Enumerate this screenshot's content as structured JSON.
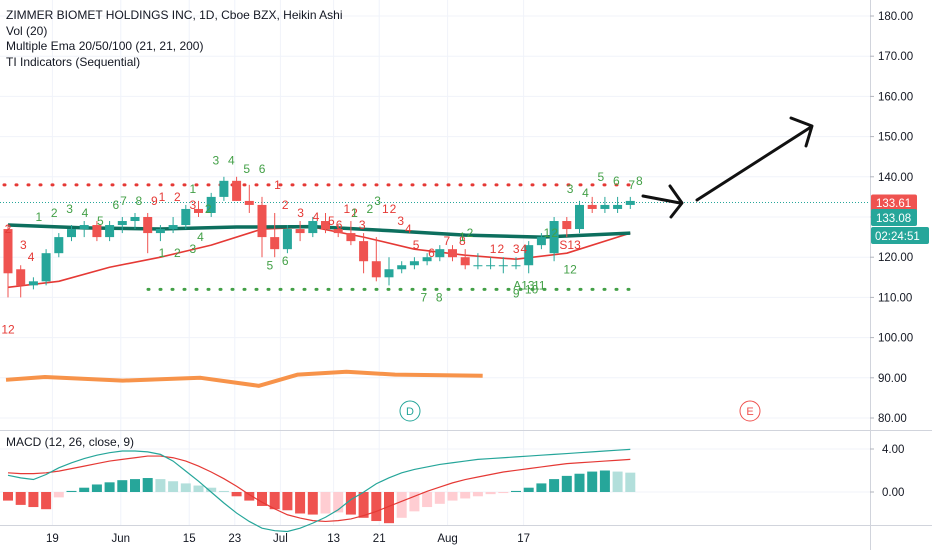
{
  "legend": {
    "title": "ZIMMER BIOMET HOLDINGS INC, 1D, Cboe BZX, Heikin Ashi",
    "lines": [
      "Vol (20)",
      "Multiple Ema 20/50/100 (21, 21, 200)",
      "TI Indicators (Sequential)"
    ],
    "macd_title": "MACD (12, 26, close, 9)"
  },
  "price_tags": {
    "last": "133.61",
    "ema": "133.08",
    "countdown": "02:24:51"
  },
  "event_markers": [
    {
      "label": "D",
      "date_index": 28,
      "color": "#26a69a"
    },
    {
      "label": "E",
      "date_index": 53,
      "color": "#ef5350"
    }
  ],
  "colors": {
    "up": "#26a69a",
    "down": "#ef5350",
    "up_light": "#b2dfdb",
    "down_light": "#ffcdd2",
    "ema_dark": "#0d6f5e",
    "ema_red": "#e53935",
    "orange": "#f7934a",
    "grid": "#f0f3fa",
    "axis_text": "#131722",
    "seq_green": "#43a047",
    "seq_red": "#e53935",
    "last_tag": "#ef5350",
    "ema_tag": "#26a69a"
  },
  "chart_data": [
    {
      "type": "candlestick",
      "title": "ZIMMER BIOMET HOLDINGS INC, 1D, Cboe BZX, Heikin Ashi",
      "y_axis": {
        "min": 77,
        "max": 184,
        "ticks": [
          "180.00",
          "170.00",
          "160.00",
          "150.00",
          "140.00",
          "130.00",
          "120.00",
          "110.00",
          "100.00",
          "90.00",
          "80.00"
        ]
      },
      "x_axis": {
        "ticks": [
          {
            "label": "19",
            "index": 4
          },
          {
            "label": "Jun",
            "index": 13
          },
          {
            "label": "15",
            "index": 22
          },
          {
            "label": "23",
            "index": 28
          },
          {
            "label": "Jul",
            "index": 34
          },
          {
            "label": "13",
            "index": 41
          },
          {
            "label": "21",
            "index": 47
          },
          {
            "label": "Aug",
            "index": 56
          },
          {
            "label": "17",
            "index": 66
          }
        ],
        "index_step_px": 7.6
      },
      "candles": [
        {
          "o": 127,
          "h": 128,
          "l": 110,
          "c": 116
        },
        {
          "o": 117,
          "h": 118,
          "l": 110,
          "c": 113
        },
        {
          "o": 113,
          "h": 115,
          "l": 112,
          "c": 114
        },
        {
          "o": 114,
          "h": 122,
          "l": 113,
          "c": 121
        },
        {
          "o": 121,
          "h": 126,
          "l": 120,
          "c": 125
        },
        {
          "o": 125,
          "h": 128,
          "l": 124,
          "c": 127
        },
        {
          "o": 127,
          "h": 129,
          "l": 125,
          "c": 128
        },
        {
          "o": 128,
          "h": 129,
          "l": 124,
          "c": 125
        },
        {
          "o": 125,
          "h": 129,
          "l": 124,
          "c": 128
        },
        {
          "o": 128,
          "h": 130,
          "l": 126,
          "c": 129
        },
        {
          "o": 129,
          "h": 131,
          "l": 127,
          "c": 130
        },
        {
          "o": 130,
          "h": 131,
          "l": 121,
          "c": 126
        },
        {
          "o": 126,
          "h": 128,
          "l": 124,
          "c": 127
        },
        {
          "o": 127,
          "h": 130,
          "l": 126,
          "c": 128
        },
        {
          "o": 128,
          "h": 133,
          "l": 127,
          "c": 132
        },
        {
          "o": 132,
          "h": 134,
          "l": 130,
          "c": 131
        },
        {
          "o": 131,
          "h": 136,
          "l": 130,
          "c": 135
        },
        {
          "o": 135,
          "h": 140,
          "l": 134,
          "c": 139
        },
        {
          "o": 139,
          "h": 140,
          "l": 134,
          "c": 134
        },
        {
          "o": 134,
          "h": 138,
          "l": 131,
          "c": 133
        },
        {
          "o": 133,
          "h": 135,
          "l": 120,
          "c": 125
        },
        {
          "o": 125,
          "h": 131,
          "l": 120,
          "c": 122
        },
        {
          "o": 122,
          "h": 128,
          "l": 121,
          "c": 127
        },
        {
          "o": 127,
          "h": 129,
          "l": 124,
          "c": 126
        },
        {
          "o": 126,
          "h": 130,
          "l": 125,
          "c": 129
        },
        {
          "o": 129,
          "h": 131,
          "l": 126,
          "c": 127
        },
        {
          "o": 127,
          "h": 128,
          "l": 125,
          "c": 126
        },
        {
          "o": 126,
          "h": 129,
          "l": 123,
          "c": 124
        },
        {
          "o": 124,
          "h": 126,
          "l": 116,
          "c": 119
        },
        {
          "o": 119,
          "h": 125,
          "l": 114,
          "c": 115
        },
        {
          "o": 115,
          "h": 120,
          "l": 113,
          "c": 117
        },
        {
          "o": 117,
          "h": 119,
          "l": 116,
          "c": 118
        },
        {
          "o": 118,
          "h": 120,
          "l": 117,
          "c": 119
        },
        {
          "o": 119,
          "h": 121,
          "l": 118,
          "c": 120
        },
        {
          "o": 120,
          "h": 123,
          "l": 119,
          "c": 122
        },
        {
          "o": 122,
          "h": 123,
          "l": 119,
          "c": 120
        },
        {
          "o": 120,
          "h": 122,
          "l": 117,
          "c": 118
        },
        {
          "o": 118,
          "h": 121,
          "l": 117,
          "c": 118
        },
        {
          "o": 118,
          "h": 120,
          "l": 117,
          "c": 118
        },
        {
          "o": 118,
          "h": 120,
          "l": 116,
          "c": 118
        },
        {
          "o": 118,
          "h": 120,
          "l": 117,
          "c": 118
        },
        {
          "o": 118,
          "h": 124,
          "l": 116,
          "c": 123
        },
        {
          "o": 123,
          "h": 126,
          "l": 122,
          "c": 125
        },
        {
          "o": 121,
          "h": 130,
          "l": 119,
          "c": 129
        },
        {
          "o": 129,
          "h": 130,
          "l": 125,
          "c": 127
        },
        {
          "o": 127,
          "h": 134,
          "l": 126,
          "c": 133
        },
        {
          "o": 133,
          "h": 135,
          "l": 131,
          "c": 132
        },
        {
          "o": 132,
          "h": 135,
          "l": 131,
          "c": 133
        },
        {
          "o": 132,
          "h": 135,
          "l": 131,
          "c": 133
        },
        {
          "o": 133,
          "h": 135,
          "l": 132,
          "c": 134
        }
      ],
      "ema_dark": [
        {
          "i": 0,
          "v": 128.0
        },
        {
          "i": 6,
          "v": 127.3
        },
        {
          "i": 12,
          "v": 127.0
        },
        {
          "i": 18,
          "v": 127.5
        },
        {
          "i": 24,
          "v": 127.6
        },
        {
          "i": 30,
          "v": 126.6
        },
        {
          "i": 36,
          "v": 125.5
        },
        {
          "i": 42,
          "v": 125.0
        },
        {
          "i": 49,
          "v": 126.0
        }
      ],
      "ema_red": [
        {
          "i": 0,
          "v": 112.5
        },
        {
          "i": 4,
          "v": 114.0
        },
        {
          "i": 8,
          "v": 117.5
        },
        {
          "i": 12,
          "v": 120.0
        },
        {
          "i": 16,
          "v": 123.0
        },
        {
          "i": 20,
          "v": 127.0
        },
        {
          "i": 24,
          "v": 127.5
        },
        {
          "i": 28,
          "v": 125.0
        },
        {
          "i": 32,
          "v": 122.0
        },
        {
          "i": 36,
          "v": 120.5
        },
        {
          "i": 40,
          "v": 119.5
        },
        {
          "i": 44,
          "v": 121.0
        },
        {
          "i": 49,
          "v": 126.0
        }
      ],
      "orange_line": [
        {
          "i": 0,
          "v": 89.5
        },
        {
          "i": 4,
          "v": 90.2
        },
        {
          "i": 12,
          "v": 89.3
        },
        {
          "i": 20,
          "v": 90.0
        },
        {
          "i": 26,
          "v": 88.0
        },
        {
          "i": 30,
          "v": 90.8
        },
        {
          "i": 35,
          "v": 91.5
        },
        {
          "i": 40,
          "v": 90.8
        },
        {
          "i": 49,
          "v": 90.5
        }
      ],
      "resistance_level": 138,
      "support_level": 112,
      "last_price": 133.61,
      "ema_price": 133.08,
      "sequential_labels": [
        {
          "text": "2",
          "i": 0,
          "v": 126,
          "color": "red"
        },
        {
          "text": "3",
          "i": 2,
          "v": 122,
          "color": "red"
        },
        {
          "text": "4",
          "i": 3,
          "v": 119,
          "color": "red"
        },
        {
          "text": "1",
          "i": 4,
          "v": 129,
          "color": "green"
        },
        {
          "text": "2",
          "i": 6,
          "v": 130,
          "color": "green"
        },
        {
          "text": "3",
          "i": 8,
          "v": 131,
          "color": "green"
        },
        {
          "text": "4",
          "i": 10,
          "v": 130,
          "color": "green"
        },
        {
          "text": "5",
          "i": 12,
          "v": 128,
          "color": "green"
        },
        {
          "text": "6",
          "i": 14,
          "v": 132,
          "color": "green"
        },
        {
          "text": "7",
          "i": 15,
          "v": 133,
          "color": "green"
        },
        {
          "text": "8",
          "i": 17,
          "v": 133,
          "color": "green"
        },
        {
          "text": "9",
          "i": 19,
          "v": 133,
          "color": "red"
        },
        {
          "text": "1",
          "i": 20,
          "v": 134,
          "color": "red"
        },
        {
          "text": "2",
          "i": 22,
          "v": 134,
          "color": "red"
        },
        {
          "text": "3",
          "i": 24,
          "v": 132,
          "color": "red"
        },
        {
          "text": "1",
          "i": 24,
          "v": 136,
          "color": "green"
        },
        {
          "text": "2",
          "i": 26,
          "v": 131,
          "color": "green"
        },
        {
          "text": "3",
          "i": 27,
          "v": 143,
          "color": "green"
        },
        {
          "text": "4",
          "i": 29,
          "v": 143,
          "color": "green"
        },
        {
          "text": "5",
          "i": 31,
          "v": 141,
          "color": "green"
        },
        {
          "text": "6",
          "i": 33,
          "v": 141,
          "color": "green"
        },
        {
          "text": "1",
          "i": 35,
          "v": 137,
          "color": "red"
        },
        {
          "text": "2",
          "i": 36,
          "v": 132,
          "color": "red"
        },
        {
          "text": "3",
          "i": 38,
          "v": 130,
          "color": "red"
        },
        {
          "text": "4",
          "i": 40,
          "v": 129,
          "color": "red"
        },
        {
          "text": "5",
          "i": 42,
          "v": 128,
          "color": "red"
        },
        {
          "text": "6",
          "i": 43,
          "v": 127,
          "color": "red"
        },
        {
          "text": "1",
          "i": 44,
          "v": 131,
          "color": "red"
        },
        {
          "text": "2",
          "i": 45,
          "v": 130,
          "color": "red"
        },
        {
          "text": "3",
          "i": 46,
          "v": 127,
          "color": "red"
        },
        {
          "text": "1",
          "i": 45,
          "v": 130,
          "color": "green"
        },
        {
          "text": "2",
          "i": 47,
          "v": 131,
          "color": "green"
        },
        {
          "text": "3",
          "i": 48,
          "v": 133,
          "color": "green"
        }
      ],
      "sequential_labels_more": [
        {
          "text": "1",
          "i": 49,
          "v": 131,
          "color": "red"
        },
        {
          "text": "2",
          "i": 50,
          "v": 131,
          "color": "red"
        },
        {
          "text": "3",
          "i": 51,
          "v": 128,
          "color": "red"
        },
        {
          "text": "4",
          "i": 52,
          "v": 126,
          "color": "red"
        },
        {
          "text": "5",
          "i": 53,
          "v": 122,
          "color": "red"
        },
        {
          "text": "6",
          "i": 55,
          "v": 120,
          "color": "red"
        },
        {
          "text": "7",
          "i": 57,
          "v": 123,
          "color": "red"
        },
        {
          "text": "8",
          "i": 59,
          "v": 123,
          "color": "red"
        },
        {
          "text": "1",
          "i": 59,
          "v": 124,
          "color": "green"
        },
        {
          "text": "2",
          "i": 60,
          "v": 125,
          "color": "green"
        },
        {
          "text": "1",
          "i": 63,
          "v": 121,
          "color": "red"
        },
        {
          "text": "2",
          "i": 64,
          "v": 121,
          "color": "red"
        },
        {
          "text": "3",
          "i": 66,
          "v": 121,
          "color": "red"
        },
        {
          "text": "4",
          "i": 67,
          "v": 121,
          "color": "red"
        },
        {
          "text": "1",
          "i": 70,
          "v": 125,
          "color": "green"
        },
        {
          "text": "2",
          "i": 71,
          "v": 125,
          "color": "green"
        },
        {
          "text": "3",
          "i": 73,
          "v": 136,
          "color": "green"
        },
        {
          "text": "4",
          "i": 75,
          "v": 135,
          "color": "green"
        },
        {
          "text": "5",
          "i": 77,
          "v": 139,
          "color": "green"
        },
        {
          "text": "6",
          "i": 79,
          "v": 138,
          "color": "green"
        },
        {
          "text": "7",
          "i": 81,
          "v": 137,
          "color": "green"
        },
        {
          "text": "8",
          "i": 82,
          "v": 138,
          "color": "green"
        },
        {
          "text": "1",
          "i": 20,
          "v": 120,
          "color": "green"
        },
        {
          "text": "2",
          "i": 22,
          "v": 120,
          "color": "green"
        },
        {
          "text": "3",
          "i": 24,
          "v": 121,
          "color": "green"
        },
        {
          "text": "4",
          "i": 25,
          "v": 124,
          "color": "green"
        },
        {
          "text": "5",
          "i": 34,
          "v": 117,
          "color": "green"
        },
        {
          "text": "6",
          "i": 36,
          "v": 118,
          "color": "green"
        },
        {
          "text": "7",
          "i": 54,
          "v": 109,
          "color": "green"
        },
        {
          "text": "8",
          "i": 56,
          "v": 109,
          "color": "green"
        },
        {
          "text": "9",
          "i": 66,
          "v": 110,
          "color": "green"
        },
        {
          "text": "A13",
          "i": 67,
          "v": 112,
          "color": "green"
        },
        {
          "text": "10",
          "i": 68,
          "v": 111,
          "color": "green"
        },
        {
          "text": "11",
          "i": 69,
          "v": 112,
          "color": "green"
        },
        {
          "text": "12",
          "i": 73,
          "v": 116,
          "color": "green"
        },
        {
          "text": "S13",
          "i": 73,
          "v": 122,
          "color": "red"
        },
        {
          "text": "12",
          "i": 0,
          "v": 101,
          "color": "red"
        }
      ]
    },
    {
      "type": "bar",
      "title": "MACD (12, 26, close, 9)",
      "y_axis": {
        "ticks": [
          "4.00",
          "0.00"
        ],
        "min": -4.5,
        "max": 7.5
      },
      "histogram": [
        -0.8,
        -1.2,
        -1.4,
        -1.6,
        -0.5,
        0.1,
        0.4,
        0.7,
        0.9,
        1.1,
        1.2,
        1.3,
        1.2,
        1.0,
        0.8,
        0.6,
        0.4,
        0.1,
        -0.4,
        -0.8,
        -1.3,
        -1.6,
        -1.7,
        -2.0,
        -2.1,
        -2.0,
        -1.9,
        -2.1,
        -2.4,
        -2.7,
        -2.9,
        -2.4,
        -1.8,
        -1.4,
        -1.1,
        -0.8,
        -0.6,
        -0.4,
        -0.2,
        -0.1,
        0.1,
        0.4,
        0.8,
        1.2,
        1.5,
        1.7,
        1.9,
        2.0,
        1.9,
        1.8
      ],
      "macd_line": [
        2.5,
        2.2,
        2.0,
        2.6,
        3.4,
        4.0,
        4.5,
        4.9,
        5.2,
        5.4,
        5.4,
        5.3,
        5.0,
        4.2,
        3.0,
        1.8,
        0.5,
        -0.8,
        -2.0,
        -3.0,
        -3.8,
        -4.1,
        -4.2,
        -3.8,
        -3.2,
        -2.5,
        -1.6,
        -0.4,
        0.5,
        1.5,
        2.2,
        2.8,
        3.2,
        3.5,
        3.8,
        4.0,
        4.2,
        4.4,
        4.5,
        4.6,
        4.7,
        4.8,
        4.9,
        5.0,
        5.1,
        5.2,
        5.3,
        5.4,
        5.5,
        5.6
      ],
      "signal_line": [
        2.8,
        2.7,
        2.7,
        2.8,
        3.0,
        3.3,
        3.6,
        3.9,
        4.2,
        4.4,
        4.6,
        4.8,
        4.8,
        4.6,
        4.2,
        3.6,
        2.9,
        2.1,
        1.2,
        0.2,
        -0.7,
        -1.5,
        -2.2,
        -2.6,
        -2.9,
        -3.0,
        -2.9,
        -2.7,
        -2.3,
        -1.8,
        -1.2,
        -0.6,
        0.0,
        0.6,
        1.1,
        1.6,
        2.0,
        2.3,
        2.6,
        2.9,
        3.1,
        3.3,
        3.5,
        3.7,
        3.9,
        4.0,
        4.1,
        4.2,
        4.3,
        4.4
      ]
    }
  ]
}
